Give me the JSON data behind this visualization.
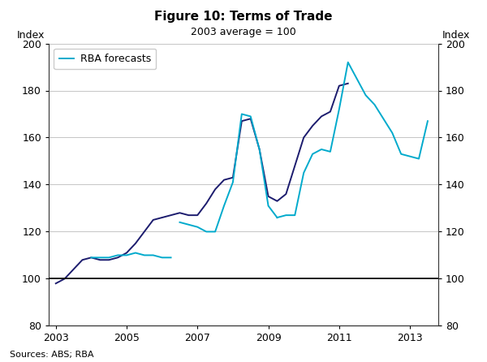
{
  "title": "Figure 10: Terms of Trade",
  "subtitle": "2003 average = 100",
  "ylabel_left": "Index",
  "ylabel_right": "Index",
  "source": "Sources: ABS; RBA",
  "ylim": [
    80,
    200
  ],
  "yticks": [
    80,
    100,
    120,
    140,
    160,
    180,
    200
  ],
  "xlim": [
    2002.8,
    2013.8
  ],
  "xticks": [
    2003,
    2005,
    2007,
    2009,
    2011,
    2013
  ],
  "background_color": "#ffffff",
  "hline_y": 100,
  "actual_color": "#1c1c6e",
  "forecast_color": "#00aacc",
  "actual_linewidth": 1.4,
  "forecast_linewidth": 1.4,
  "legend_label": "RBA forecasts",
  "actual_x": [
    2003.0,
    2003.25,
    2003.5,
    2003.75,
    2004.0,
    2004.25,
    2004.5,
    2004.75,
    2005.0,
    2005.25,
    2005.5,
    2005.75,
    2006.0,
    2006.25,
    2006.5,
    2006.75,
    2007.0,
    2007.25,
    2007.5,
    2007.75,
    2008.0,
    2008.25,
    2008.5,
    2008.75,
    2009.0,
    2009.25,
    2009.5,
    2009.75,
    2010.0,
    2010.25,
    2010.5,
    2010.75,
    2011.0,
    2011.25
  ],
  "actual_y": [
    98,
    100,
    104,
    108,
    109,
    108,
    108,
    109,
    111,
    115,
    120,
    125,
    126,
    127,
    128,
    127,
    127,
    132,
    138,
    142,
    143,
    167,
    168,
    155,
    135,
    133,
    136,
    148,
    160,
    165,
    169,
    171,
    182,
    183
  ],
  "forecast_segments": [
    {
      "x": [
        2004.0,
        2004.25,
        2004.5,
        2004.75,
        2005.0,
        2005.25,
        2005.5,
        2005.75,
        2006.0,
        2006.25
      ],
      "y": [
        109,
        109,
        109,
        110,
        110,
        111,
        110,
        110,
        109,
        109
      ]
    },
    {
      "x": [
        2006.5,
        2006.75,
        2007.0,
        2007.25,
        2007.5,
        2007.75,
        2008.0,
        2008.25,
        2008.5,
        2008.75,
        2009.0,
        2009.25
      ],
      "y": [
        124,
        123,
        122,
        120,
        120,
        131,
        141,
        170,
        169,
        155,
        131,
        126
      ]
    },
    {
      "x": [
        2009.25,
        2009.5,
        2009.75,
        2010.0,
        2010.25,
        2010.5,
        2010.75,
        2011.0,
        2011.25,
        2011.5,
        2011.75,
        2012.0,
        2012.25,
        2012.5,
        2012.75,
        2013.0,
        2013.25,
        2013.5
      ],
      "y": [
        126,
        127,
        127,
        145,
        153,
        155,
        154,
        172,
        192,
        185,
        178,
        174,
        168,
        162,
        153,
        152,
        151,
        167
      ]
    }
  ],
  "grid_color": "#bbbbbb",
  "grid_linewidth": 0.6,
  "spine_color": "#333333",
  "tick_fontsize": 9,
  "label_fontsize": 9,
  "title_fontsize": 11,
  "subtitle_fontsize": 9,
  "source_fontsize": 8
}
